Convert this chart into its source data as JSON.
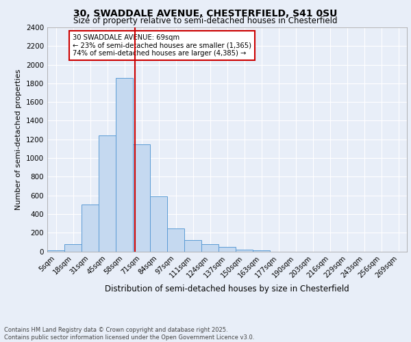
{
  "title_line1": "30, SWADDALE AVENUE, CHESTERFIELD, S41 0SU",
  "title_line2": "Size of property relative to semi-detached houses in Chesterfield",
  "xlabel": "Distribution of semi-detached houses by size in Chesterfield",
  "ylabel": "Number of semi-detached properties",
  "categories": [
    "5sqm",
    "18sqm",
    "31sqm",
    "45sqm",
    "58sqm",
    "71sqm",
    "84sqm",
    "97sqm",
    "111sqm",
    "124sqm",
    "137sqm",
    "150sqm",
    "163sqm",
    "177sqm",
    "190sqm",
    "203sqm",
    "216sqm",
    "229sqm",
    "243sqm",
    "256sqm",
    "269sqm"
  ],
  "bar_values": [
    10,
    80,
    500,
    1240,
    1860,
    1150,
    590,
    245,
    120,
    75,
    50,
    15,
    10,
    0,
    0,
    0,
    0,
    0,
    0,
    0,
    0
  ],
  "bar_color": "#c5d9f0",
  "bar_edge_color": "#5b9bd5",
  "red_line_x": 4.62,
  "annotation_text": "30 SWADDALE AVENUE: 69sqm\n← 23% of semi-detached houses are smaller (1,365)\n74% of semi-detached houses are larger (4,385) →",
  "annotation_box_color": "#ffffff",
  "annotation_box_edge": "#cc0000",
  "red_line_color": "#cc0000",
  "ylim": [
    0,
    2400
  ],
  "yticks": [
    0,
    200,
    400,
    600,
    800,
    1000,
    1200,
    1400,
    1600,
    1800,
    2000,
    2200,
    2400
  ],
  "footnote": "Contains HM Land Registry data © Crown copyright and database right 2025.\nContains public sector information licensed under the Open Government Licence v3.0.",
  "bg_color": "#e8eef8",
  "plot_bg_color": "#e8eef8",
  "grid_color": "#ffffff"
}
